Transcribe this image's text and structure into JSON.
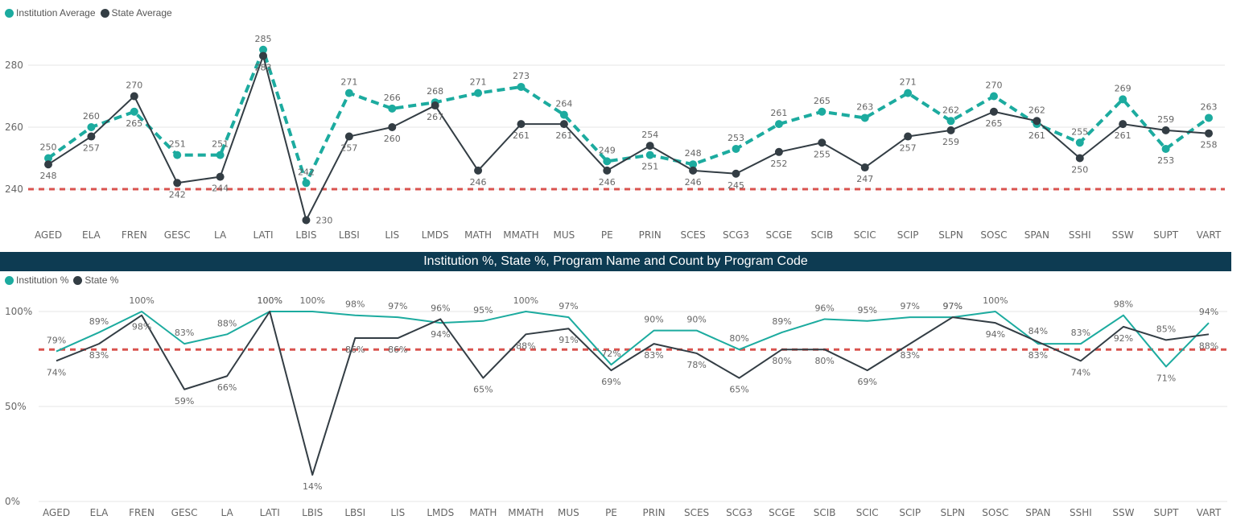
{
  "colors": {
    "institution": "#1cab9f",
    "state": "#333d44",
    "target": "#d9534f",
    "title_bg": "#0d3b52"
  },
  "chart_data": [
    {
      "type": "line",
      "title": "",
      "legend": [
        "Institution Average",
        "State Average"
      ],
      "legend_placement": "top-left",
      "categories": [
        "AGED",
        "ELA",
        "FREN",
        "GESC",
        "LA",
        "LATI",
        "LBIS",
        "LBSI",
        "LIS",
        "LMDS",
        "MATH",
        "MMATH",
        "MUS",
        "PE",
        "PRIN",
        "SCES",
        "SCG3",
        "SCGE",
        "SCIB",
        "SCIC",
        "SCIP",
        "SLPN",
        "SOSC",
        "SPAN",
        "SSHI",
        "SSW",
        "SUPT",
        "VART"
      ],
      "series": [
        {
          "name": "Institution Average",
          "style": "dashed-markers",
          "values": [
            250,
            260,
            265,
            251,
            251,
            285,
            242,
            271,
            266,
            268,
            271,
            273,
            264,
            249,
            251,
            248,
            253,
            261,
            265,
            263,
            271,
            262,
            270,
            261,
            255,
            269,
            253,
            263
          ]
        },
        {
          "name": "State Average",
          "style": "solid-markers",
          "values": [
            248,
            257,
            270,
            242,
            244,
            283,
            230,
            257,
            260,
            267,
            246,
            261,
            261,
            246,
            254,
            246,
            245,
            252,
            255,
            247,
            257,
            259,
            265,
            262,
            250,
            261,
            259,
            258
          ]
        }
      ],
      "reference_line": 240,
      "yticks": [
        240,
        260,
        280
      ],
      "ylim": [
        226,
        289
      ],
      "grid": true
    },
    {
      "type": "line",
      "title": "Institution %, State %, Program Name and Count by Program Code",
      "legend": [
        "Institution %",
        "State %"
      ],
      "legend_placement": "top-left",
      "categories": [
        "AGED",
        "ELA",
        "FREN",
        "GESC",
        "LA",
        "LATI",
        "LBIS",
        "LBSI",
        "LIS",
        "LMDS",
        "MATH",
        "MMATH",
        "MUS",
        "PE",
        "PRIN",
        "SCES",
        "SCG3",
        "SCGE",
        "SCIB",
        "SCIC",
        "SCIP",
        "SLPN",
        "SOSC",
        "SPAN",
        "SSHI",
        "SSW",
        "SUPT",
        "VART"
      ],
      "series": [
        {
          "name": "Institution %",
          "values": [
            79,
            89,
            100,
            83,
            88,
            100,
            100,
            98,
            97,
            94,
            95,
            100,
            97,
            72,
            90,
            90,
            80,
            89,
            96,
            95,
            97,
            97,
            100,
            83,
            83,
            98,
            71,
            94
          ]
        },
        {
          "name": "State %",
          "values": [
            74,
            83,
            98,
            59,
            66,
            100,
            14,
            86,
            86,
            96,
            65,
            88,
            91,
            69,
            83,
            78,
            65,
            80,
            80,
            69,
            83,
            97,
            94,
            84,
            74,
            92,
            85,
            88
          ]
        }
      ],
      "reference_line": 80,
      "yticks": [
        "0%",
        "50%",
        "100%"
      ],
      "ylim": [
        0,
        100
      ],
      "grid": true
    }
  ]
}
